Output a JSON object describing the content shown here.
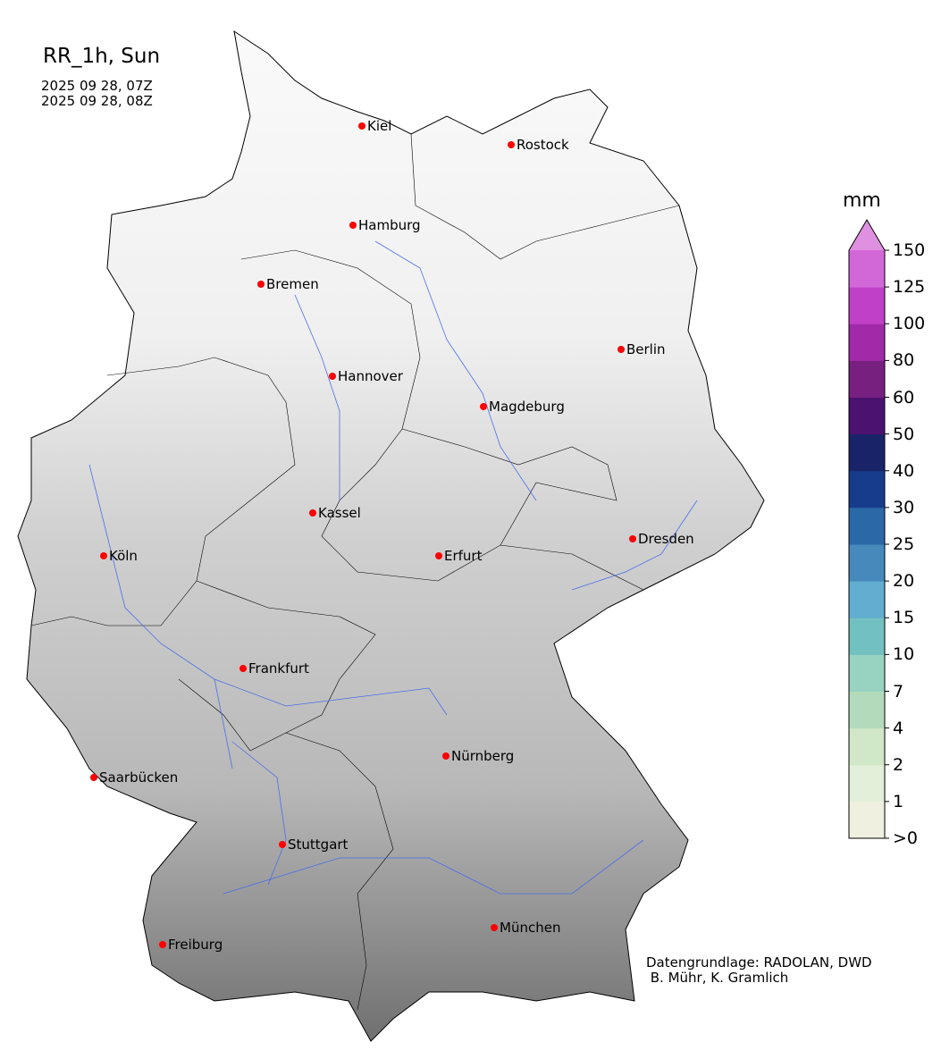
{
  "title": "RR_1h, Sun",
  "time_start": "2025 09 28, 07Z",
  "time_end": "2025 09 28, 08Z",
  "credit": "Datengrundlage: RADOLAN, DWD\n B. Mühr, K. Gramlich",
  "colorbar": {
    "unit": "mm",
    "ticks": [
      ">0",
      "1",
      "2",
      "4",
      "7",
      "10",
      "15",
      "20",
      "25",
      "30",
      "40",
      "50",
      "60",
      "80",
      "100",
      "125",
      "150"
    ],
    "colors": [
      "#f0f0e0",
      "#e3f0d9",
      "#d0e8c8",
      "#b3dbbb",
      "#97d3c0",
      "#73c0c0",
      "#62aed0",
      "#4789bb",
      "#2b68a8",
      "#173c8c",
      "#192468",
      "#4b1270",
      "#782080",
      "#a02aa8",
      "#c040c8",
      "#d268d8"
    ],
    "extend_color": "#e090e0"
  },
  "cities": [
    "Kiel",
    "Rostock",
    "Hamburg",
    "Bremen",
    "Berlin",
    "Hannover",
    "Magdeburg",
    "Kassel",
    "Köln",
    "Erfurt",
    "Dresden",
    "Frankfurt",
    "Nürnberg",
    "Saarbücken",
    "Stuttgart",
    "Freiburg",
    "München"
  ],
  "marker_color": "#ff0000",
  "river_color": "#4a6ee8"
}
